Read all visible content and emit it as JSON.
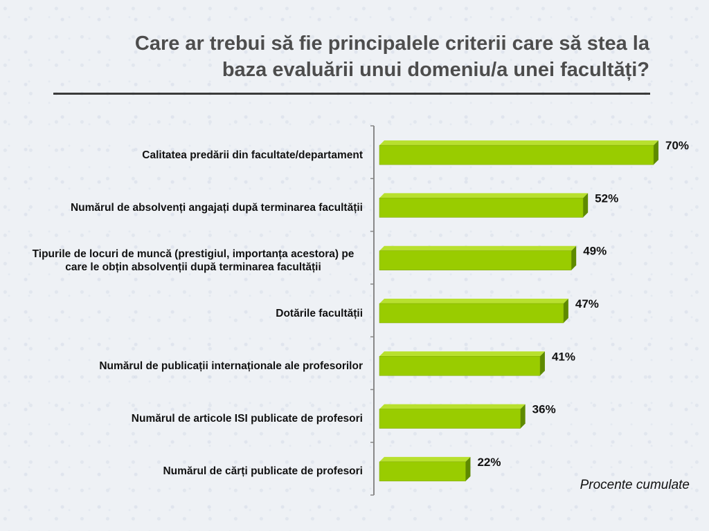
{
  "title": "Care ar trebui să fie principalele criterii care să stea la\nbaza evaluării unui domeniu/a unei facultăți?",
  "note": "Procente cumulate",
  "colors": {
    "bar_front": "#99cc00",
    "bar_top": "#b8e02e",
    "bar_side": "#5e8a00",
    "axis": "#888888"
  },
  "chart_data": {
    "type": "bar",
    "orientation": "horizontal",
    "title": "Care ar trebui să fie principalele criterii care să stea la baza evaluării unui domeniu/a unei facultăți?",
    "categories": [
      "Calitatea predării din facultate/departament",
      "Numărul de absolvenți angajați după terminarea facultății",
      "Tipurile de locuri de muncă (prestigiul, importanța acestora) pe care le obțin absolvenții după terminarea facultății",
      "Dotările facultății",
      "Numărul de publicații internaționale ale profesorilor",
      "Numărul de articole ISI publicate de profesori",
      "Numărul de cărți publicate de profesori"
    ],
    "values": [
      70,
      52,
      49,
      47,
      41,
      36,
      22
    ],
    "value_labels": [
      "70%",
      "52%",
      "49%",
      "47%",
      "41%",
      "36%",
      "22%"
    ],
    "xlim": [
      0,
      80
    ],
    "grid": false,
    "legend": "none"
  }
}
